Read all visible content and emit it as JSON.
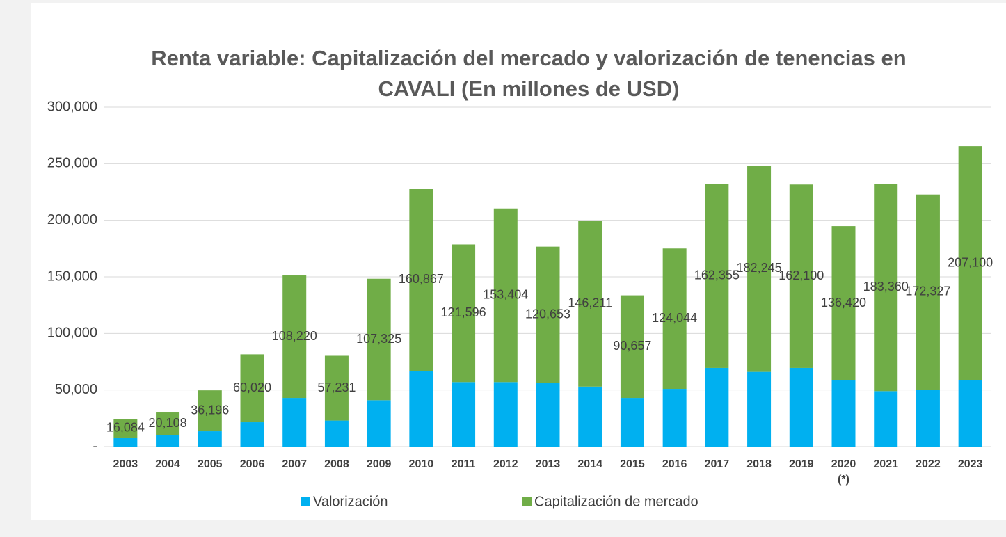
{
  "chart_data": {
    "type": "bar",
    "stacked": true,
    "title": "Renta variable: Capitalización del mercado y valorización de tenencias en\nCAVALI (En millones de USD)",
    "categories": [
      "2003",
      "2004",
      "2005",
      "2006",
      "2007",
      "2008",
      "2009",
      "2010",
      "2011",
      "2012",
      "2013",
      "2014",
      "2015",
      "2016",
      "2017",
      "2018",
      "2019",
      "2020\n(*)",
      "2021",
      "2022",
      "2023"
    ],
    "series": [
      {
        "name": "Valorización",
        "color": "#00b0f0",
        "values": [
          8000,
          10000,
          13500,
          21500,
          43000,
          23000,
          41000,
          67000,
          57000,
          57000,
          56000,
          53000,
          43000,
          51000,
          69500,
          66000,
          69500,
          58400,
          49000,
          50400,
          58400
        ]
      },
      {
        "name": "Capitalización de mercado",
        "color": "#70ad47",
        "values": [
          16084,
          20108,
          36196,
          60020,
          108220,
          57231,
          107325,
          160867,
          121596,
          153404,
          120653,
          146211,
          90657,
          124044,
          162355,
          182245,
          162100,
          136420,
          183360,
          172327,
          207100
        ],
        "value_labels": [
          "16,084",
          "20,108",
          "36,196",
          "60,020",
          "108,220",
          "57,231",
          "107,325",
          "160,867",
          "121,596",
          "153,404",
          "120,653",
          "146,211",
          "90,657",
          "124,044",
          "162,355",
          "182,245",
          "162,100",
          "136,420",
          "183,360",
          "172,327",
          "207,100"
        ]
      }
    ],
    "ylim": [
      0,
      300000
    ],
    "yticks": [
      {
        "value": 0,
        "label": "-"
      },
      {
        "value": 50000,
        "label": "50,000"
      },
      {
        "value": 100000,
        "label": "100,000"
      },
      {
        "value": 150000,
        "label": "150,000"
      },
      {
        "value": 200000,
        "label": "200,000"
      },
      {
        "value": 250000,
        "label": "250,000"
      },
      {
        "value": 300000,
        "label": "300,000"
      }
    ],
    "grid": true,
    "legend": "bottom"
  }
}
